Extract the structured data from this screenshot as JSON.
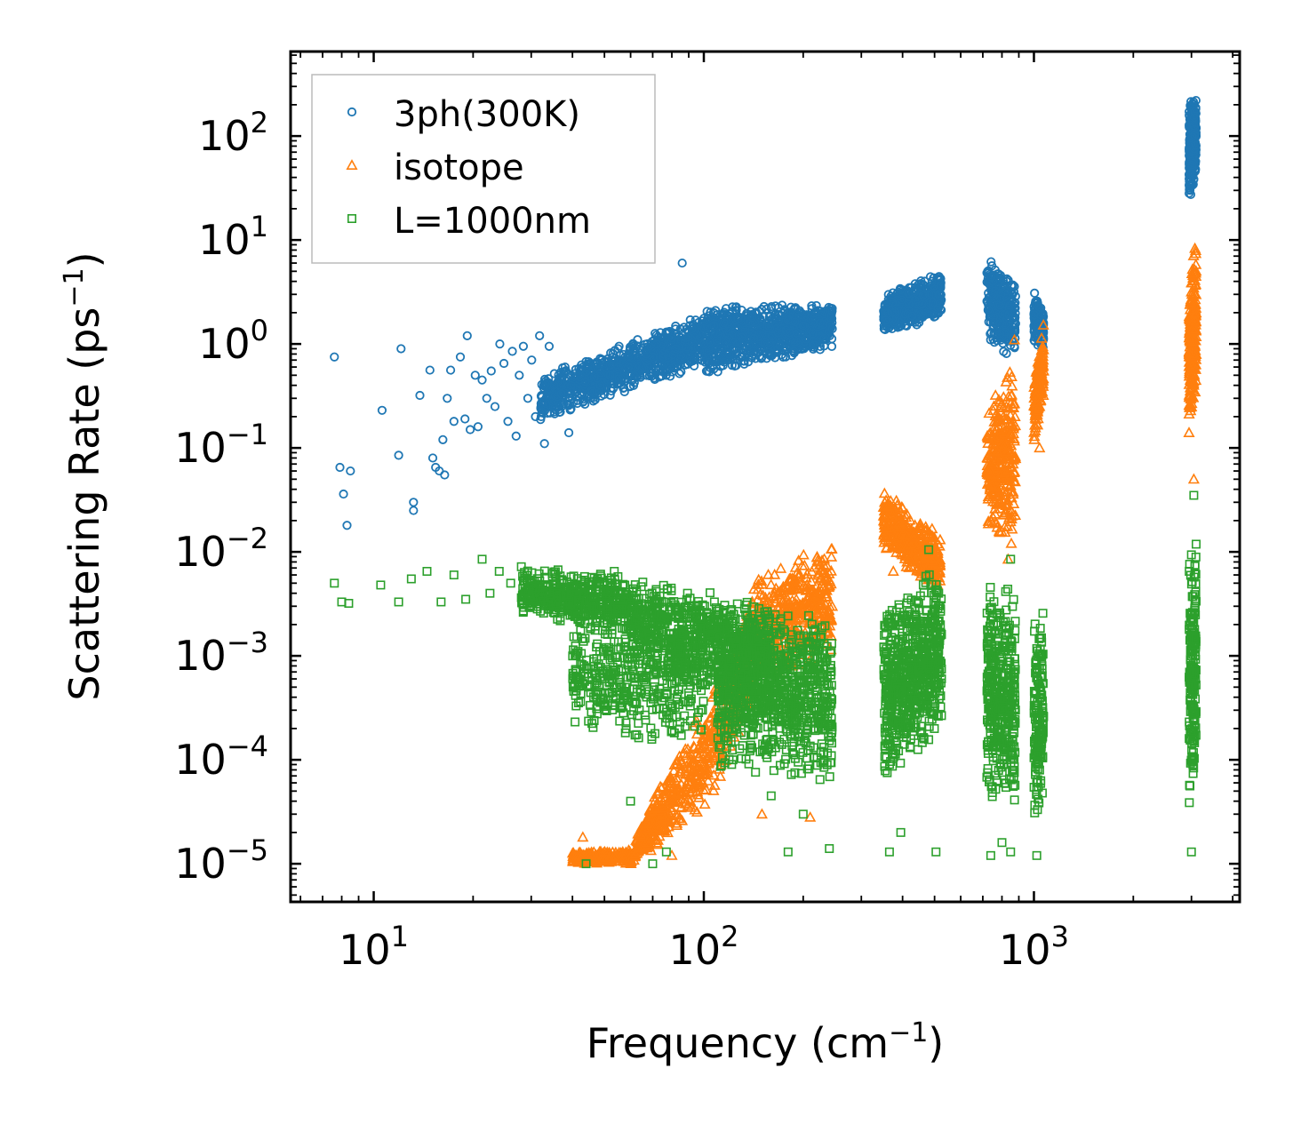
{
  "chart_data": {
    "type": "scatter",
    "title": "",
    "xlabel": "Frequency (cm",
    "xlabel_sup": "−1",
    "xlabel_end": ")",
    "ylabel": "Scattering Rate (ps",
    "ylabel_sup": "−1",
    "ylabel_end": ")",
    "xscale": "log",
    "yscale": "log",
    "xlim": [
      5.6,
      4200
    ],
    "ylim": [
      4.3e-06,
      650
    ],
    "grid": false,
    "legend_position": "top-left",
    "x_ticks": [
      {
        "base": "10",
        "exp": "1",
        "value": 10
      },
      {
        "base": "10",
        "exp": "2",
        "value": 100
      },
      {
        "base": "10",
        "exp": "3",
        "value": 1000
      }
    ],
    "y_ticks": [
      {
        "base": "10",
        "exp": "2",
        "value": 100
      },
      {
        "base": "10",
        "exp": "1",
        "value": 10
      },
      {
        "base": "10",
        "exp": "0",
        "value": 1
      },
      {
        "base": "10",
        "exp": "−1",
        "value": 0.1
      },
      {
        "base": "10",
        "exp": "−2",
        "value": 0.01
      },
      {
        "base": "10",
        "exp": "−3",
        "value": 0.001
      },
      {
        "base": "10",
        "exp": "−4",
        "value": 0.0001
      },
      {
        "base": "10",
        "exp": "−5",
        "value": 1e-05
      }
    ],
    "series": [
      {
        "name": "3ph(300K)",
        "marker": "circle",
        "color": "#1f77b4",
        "points": [
          [
            7.6,
            0.75
          ],
          [
            7.9,
            0.065
          ],
          [
            8.1,
            0.036
          ],
          [
            8.3,
            0.018
          ],
          [
            8.5,
            0.06
          ],
          [
            10.6,
            0.23
          ],
          [
            11.9,
            0.085
          ],
          [
            12.1,
            0.9
          ],
          [
            13.2,
            0.03
          ],
          [
            13.2,
            0.025
          ],
          [
            13.8,
            0.32
          ],
          [
            14.8,
            0.56
          ],
          [
            15.1,
            0.08
          ],
          [
            15.4,
            0.065
          ],
          [
            15.8,
            0.06
          ],
          [
            16.2,
            0.12
          ],
          [
            16.4,
            0.055
          ],
          [
            16.7,
            0.3
          ],
          [
            17.1,
            0.56
          ],
          [
            17.5,
            0.18
          ],
          [
            18.3,
            0.75
          ],
          [
            18.9,
            0.19
          ],
          [
            19.2,
            1.2
          ],
          [
            19.6,
            0.15
          ],
          [
            20.3,
            0.5
          ],
          [
            20.7,
            0.16
          ],
          [
            21.3,
            0.45
          ],
          [
            22.0,
            0.3
          ],
          [
            22.7,
            0.55
          ],
          [
            23.3,
            0.25
          ],
          [
            24.1,
            1.0
          ],
          [
            24.8,
            0.65
          ],
          [
            25.5,
            0.18
          ],
          [
            26.3,
            0.85
          ],
          [
            27.0,
            0.13
          ],
          [
            27.6,
            0.5
          ],
          [
            28.4,
            0.95
          ],
          [
            29.3,
            0.3
          ],
          [
            30.1,
            0.7
          ],
          [
            30.9,
            0.2
          ],
          [
            31.8,
            1.2
          ],
          [
            32.9,
            0.11
          ],
          [
            34.0,
            0.95
          ],
          [
            35.2,
            0.4
          ],
          [
            36.5,
            0.22
          ],
          [
            38.0,
            0.6
          ],
          [
            39.0,
            0.14
          ],
          [
            40.0,
            0.3
          ],
          [
            42.0,
            0.45
          ],
          [
            44.0,
            0.6
          ],
          [
            46.0,
            0.35
          ],
          [
            49.0,
            0.7
          ],
          [
            52.0,
            0.5
          ],
          [
            55.0,
            0.9
          ],
          [
            59.0,
            0.6
          ],
          [
            63.0,
            1.1
          ],
          [
            67.0,
            0.8
          ],
          [
            72.0,
            1.0
          ],
          [
            77.0,
            1.3
          ],
          [
            82.0,
            0.9
          ],
          [
            86.0,
            6.0
          ],
          [
            92.0,
            1.4
          ],
          [
            100.0,
            1.0
          ],
          [
            107.0,
            2.0
          ],
          [
            115.0,
            1.6
          ],
          [
            125.0,
            2.1
          ],
          [
            140.0,
            1.8
          ],
          [
            160.0,
            2.2
          ],
          [
            180.0,
            1.7
          ],
          [
            200.0,
            1.5
          ],
          [
            225.0,
            1.6
          ],
          [
            245.0,
            1.4
          ]
        ],
        "bands": [
          {
            "xmin": 32,
            "xmax": 100,
            "ymin_at_start": 0.18,
            "ymin_at_end": 0.6,
            "ymax_at_start": 0.5,
            "ymax_at_end": 2.0,
            "count": 900
          },
          {
            "xmin": 100,
            "xmax": 245,
            "ymin_at_start": 0.45,
            "ymin_at_end": 0.9,
            "ymax_at_start": 2.5,
            "ymax_at_end": 2.5,
            "count": 900
          },
          {
            "xmin": 350,
            "xmax": 525,
            "ymin_at_start": 1.2,
            "ymin_at_end": 1.8,
            "ymax_at_start": 3.0,
            "ymax_at_end": 5.0,
            "count": 550
          },
          {
            "xmin": 720,
            "xmax": 880,
            "ymin_at_start": 1.0,
            "ymin_at_end": 0.7,
            "ymax_at_start": 7.5,
            "ymax_at_end": 4.0,
            "count": 320
          },
          {
            "xmin": 1000,
            "xmax": 1070,
            "ymin_at_start": 0.9,
            "ymin_at_end": 0.9,
            "ymax_at_start": 3.2,
            "ymax_at_end": 2.2,
            "count": 140
          },
          {
            "xmin": 2950,
            "xmax": 3100,
            "ymin_at_start": 20,
            "ymin_at_end": 40,
            "ymax_at_start": 220,
            "ymax_at_end": 280,
            "count": 260
          }
        ]
      },
      {
        "name": "isotope",
        "marker": "triangle",
        "color": "#ff7f0e",
        "points": [
          [
            43.0,
            1.8e-05
          ],
          [
            80.0,
            1.2e-05
          ],
          [
            150.0,
            3e-05
          ],
          [
            210.0,
            2.8e-05
          ],
          [
            375.0,
            0.0065
          ],
          [
            840.0,
            0.24
          ],
          [
            835.0,
            0.0085
          ],
          [
            1040.0,
            0.1
          ],
          [
            2950.0,
            0.14
          ],
          [
            3050.0,
            0.05
          ]
        ],
        "bands": [
          {
            "xmin": 40,
            "xmax": 62,
            "ymin_at_start": 9.8e-06,
            "ymin_at_end": 9.8e-06,
            "ymax_at_start": 1.3e-05,
            "ymax_at_end": 1.4e-05,
            "count": 250
          },
          {
            "xmin": 62,
            "xmax": 95,
            "ymin_at_start": 1e-05,
            "ymin_at_end": 2.5e-05,
            "ymax_at_start": 2e-05,
            "ymax_at_end": 0.0003,
            "count": 300
          },
          {
            "xmin": 95,
            "xmax": 140,
            "ymin_at_start": 2e-05,
            "ymin_at_end": 0.0003,
            "ymax_at_start": 0.0002,
            "ymax_at_end": 0.005,
            "count": 300
          },
          {
            "xmin": 140,
            "xmax": 245,
            "ymin_at_start": 0.0005,
            "ymin_at_end": 0.001,
            "ymax_at_start": 0.006,
            "ymax_at_end": 0.013,
            "count": 450
          },
          {
            "xmin": 350,
            "xmax": 520,
            "ymin_at_start": 0.01,
            "ymin_at_end": 0.004,
            "ymax_at_start": 0.04,
            "ymax_at_end": 0.015,
            "count": 400
          },
          {
            "xmin": 720,
            "xmax": 880,
            "ymin_at_start": 0.015,
            "ymin_at_end": 0.008,
            "ymax_at_start": 0.25,
            "ymax_at_end": 1.2,
            "count": 320
          },
          {
            "xmin": 1000,
            "xmax": 1070,
            "ymin_at_start": 0.1,
            "ymin_at_end": 0.3,
            "ymax_at_start": 0.5,
            "ymax_at_end": 1.6,
            "count": 150
          },
          {
            "xmin": 2950,
            "xmax": 3100,
            "ymin_at_start": 0.15,
            "ymin_at_end": 0.3,
            "ymax_at_start": 3.0,
            "ymax_at_end": 14.0,
            "count": 260
          }
        ]
      },
      {
        "name": "L=1000nm",
        "marker": "square",
        "color": "#2ca02c",
        "points": [
          [
            7.6,
            0.005
          ],
          [
            8.0,
            0.0033
          ],
          [
            8.4,
            0.0032
          ],
          [
            10.5,
            0.0048
          ],
          [
            11.9,
            0.0033
          ],
          [
            13.0,
            0.0055
          ],
          [
            14.5,
            0.0065
          ],
          [
            16.0,
            0.0033
          ],
          [
            17.5,
            0.006
          ],
          [
            19.0,
            0.0035
          ],
          [
            21.3,
            0.0085
          ],
          [
            22.5,
            0.004
          ],
          [
            24.0,
            0.0065
          ],
          [
            26.0,
            0.005
          ],
          [
            28.0,
            0.0072
          ],
          [
            60.0,
            4e-05
          ],
          [
            70.0,
            1e-05
          ],
          [
            77.0,
            1.3e-05
          ],
          [
            44.0,
            1e-05
          ],
          [
            160.0,
            4.5e-05
          ],
          [
            200.0,
            3e-05
          ],
          [
            240.0,
            1.4e-05
          ],
          [
            180.0,
            1.3e-05
          ],
          [
            365.0,
            1.3e-05
          ],
          [
            395.0,
            2e-05
          ],
          [
            505.0,
            1.3e-05
          ],
          [
            740.0,
            1.2e-05
          ],
          [
            800.0,
            1.6e-05
          ],
          [
            850.0,
            1.3e-05
          ],
          [
            1020.0,
            1.2e-05
          ],
          [
            3000.0,
            1.3e-05
          ],
          [
            480.0,
            0.0105
          ],
          [
            3050.0,
            0.035
          ],
          [
            850.0,
            0.0085
          ]
        ],
        "bands": [
          {
            "xmin": 28,
            "xmax": 60,
            "ymin_at_start": 0.0025,
            "ymin_at_end": 0.0015,
            "ymax_at_start": 0.007,
            "ymax_at_end": 0.0065,
            "count": 500
          },
          {
            "xmin": 40,
            "xmax": 100,
            "ymin_at_start": 0.0002,
            "ymin_at_end": 0.0001,
            "ymax_at_start": 0.002,
            "ymax_at_end": 0.004,
            "count": 450
          },
          {
            "xmin": 60,
            "xmax": 160,
            "ymin_at_start": 0.0008,
            "ymin_at_end": 0.0003,
            "ymax_at_start": 0.006,
            "ymax_at_end": 0.0035,
            "count": 700
          },
          {
            "xmin": 110,
            "xmax": 245,
            "ymin_at_start": 8e-05,
            "ymin_at_end": 6e-05,
            "ymax_at_start": 0.0035,
            "ymax_at_end": 0.0025,
            "count": 900
          },
          {
            "xmin": 350,
            "xmax": 525,
            "ymin_at_start": 5e-05,
            "ymin_at_end": 0.0002,
            "ymax_at_start": 0.003,
            "ymax_at_end": 0.009,
            "count": 700
          },
          {
            "xmin": 720,
            "xmax": 880,
            "ymin_at_start": 3e-05,
            "ymin_at_end": 3e-05,
            "ymax_at_start": 0.005,
            "ymax_at_end": 0.006,
            "count": 400
          },
          {
            "xmin": 1000,
            "xmax": 1070,
            "ymin_at_start": 2e-05,
            "ymin_at_end": 5e-05,
            "ymax_at_start": 0.003,
            "ymax_at_end": 0.003,
            "count": 160
          },
          {
            "xmin": 2950,
            "xmax": 3100,
            "ymin_at_start": 3e-05,
            "ymin_at_end": 5e-05,
            "ymax_at_start": 0.01,
            "ymax_at_end": 0.015,
            "count": 200
          }
        ]
      }
    ]
  }
}
